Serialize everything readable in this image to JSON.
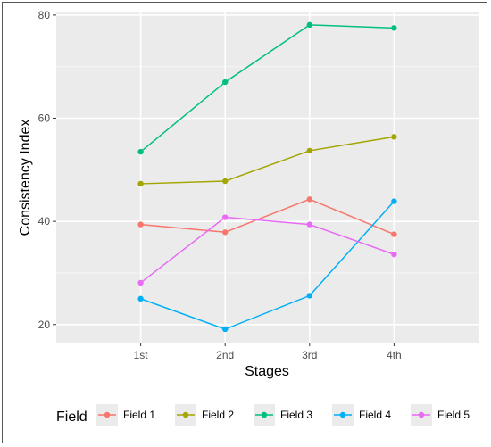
{
  "chart_data": {
    "type": "line",
    "xlabel": "Stages",
    "ylabel": "Consistency Index",
    "categories": [
      "1st",
      "2nd",
      "3rd",
      "4th"
    ],
    "ylim": [
      16.5,
      80.5
    ],
    "yticks": [
      20,
      40,
      60,
      80
    ],
    "grid": true,
    "legend": {
      "title": "Field",
      "position": "bottom"
    },
    "series": [
      {
        "name": "Field 1",
        "color": "#f8766d",
        "values": [
          39.4,
          37.9,
          44.3,
          37.5
        ]
      },
      {
        "name": "Field 2",
        "color": "#a3a500",
        "values": [
          47.3,
          47.8,
          53.7,
          56.4
        ]
      },
      {
        "name": "Field 3",
        "color": "#00bf7d",
        "values": [
          53.5,
          67.0,
          78.1,
          77.5
        ]
      },
      {
        "name": "Field 4",
        "color": "#00b0f6",
        "values": [
          25.0,
          19.1,
          25.6,
          43.9
        ]
      },
      {
        "name": "Field 5",
        "color": "#e76bf3",
        "values": [
          28.1,
          40.8,
          39.4,
          33.6
        ]
      }
    ]
  }
}
